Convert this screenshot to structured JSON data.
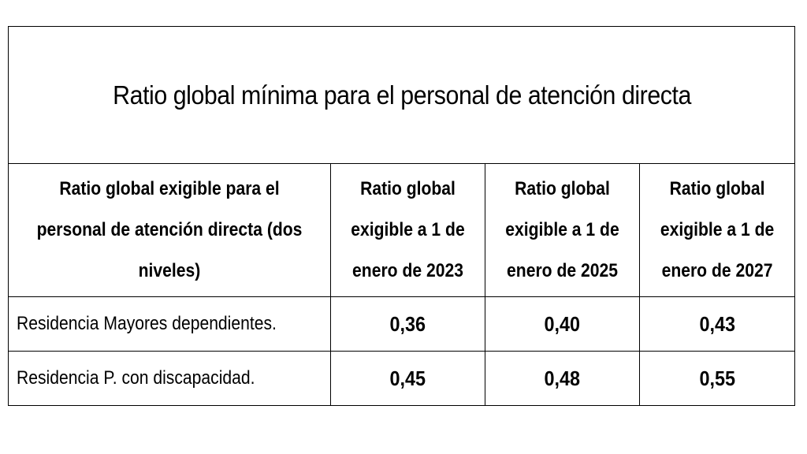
{
  "table": {
    "title": "Ratio global mínima para el personal de atención directa",
    "headers": [
      "Ratio global exigible para el personal de atención directa (dos niveles)",
      "Ratio global exigible a 1 de enero de 2023",
      "Ratio global exigible a 1 de enero de 2025",
      "Ratio global exigible a 1 de enero de 2027"
    ],
    "rows": [
      {
        "label": "Residencia Mayores dependientes.",
        "values": [
          "0,36",
          "0,40",
          "0,43"
        ]
      },
      {
        "label": "Residencia P. con discapacidad.",
        "values": [
          "0,45",
          "0,48",
          "0,55"
        ]
      }
    ]
  }
}
